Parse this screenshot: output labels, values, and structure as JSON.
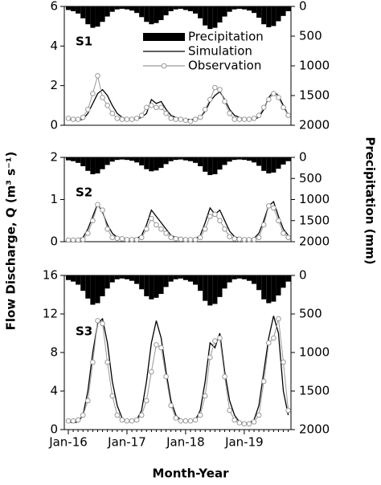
{
  "figure": {
    "xlabel": "Month-Year",
    "ylabel": "Flow Discharge, Q (m³ s⁻¹)",
    "y2label": "Precipitation (mm)"
  },
  "chart_data": [
    {
      "type": "line",
      "label": "S1",
      "ylim": [
        0,
        6
      ],
      "yticks": [
        0,
        2,
        4,
        6
      ],
      "y2lim": [
        0,
        2000
      ],
      "y2ticks": [
        0,
        500,
        1000,
        1500,
        2000
      ],
      "y2_inverted": true,
      "legend": "top-center",
      "series": [
        {
          "name": "Precipitation",
          "kind": "bar",
          "axis": "y2",
          "color": "#000000",
          "values": [
            60,
            80,
            120,
            200,
            300,
            360,
            340,
            260,
            170,
            90,
            50,
            40,
            50,
            70,
            110,
            180,
            260,
            300,
            280,
            230,
            150,
            80,
            50,
            40,
            60,
            80,
            120,
            200,
            320,
            380,
            360,
            270,
            170,
            90,
            50,
            40,
            50,
            70,
            110,
            190,
            300,
            350,
            330,
            250,
            160,
            80
          ]
        },
        {
          "name": "Simulation",
          "kind": "line",
          "color": "#000000",
          "values": [
            0.3,
            0.25,
            0.25,
            0.3,
            0.6,
            1.1,
            1.6,
            1.8,
            1.5,
            1.0,
            0.6,
            0.4,
            0.3,
            0.3,
            0.3,
            0.4,
            0.6,
            1.3,
            1.1,
            1.2,
            0.8,
            0.5,
            0.4,
            0.3,
            0.3,
            0.3,
            0.3,
            0.4,
            0.7,
            1.2,
            1.5,
            1.7,
            1.3,
            0.8,
            0.5,
            0.4,
            0.3,
            0.3,
            0.3,
            0.4,
            0.8,
            1.4,
            1.7,
            1.5,
            1.0,
            0.5
          ]
        },
        {
          "name": "Observation",
          "kind": "line-marker",
          "color": "#999999",
          "values": [
            0.35,
            0.3,
            0.3,
            0.4,
            0.8,
            1.6,
            2.5,
            1.4,
            1.0,
            0.6,
            0.35,
            0.3,
            0.3,
            0.3,
            0.35,
            0.5,
            0.9,
            1.0,
            0.9,
            0.9,
            0.6,
            0.35,
            0.3,
            0.3,
            0.25,
            0.2,
            0.3,
            0.4,
            0.8,
            1.3,
            1.9,
            1.8,
            1.2,
            0.6,
            0.3,
            0.3,
            0.3,
            0.3,
            0.35,
            0.5,
            0.9,
            1.3,
            1.6,
            1.4,
            0.9,
            0.5
          ]
        }
      ]
    },
    {
      "type": "line",
      "label": "S2",
      "ylim": [
        0,
        2
      ],
      "yticks": [
        0,
        1,
        2
      ],
      "y2lim": [
        0,
        2000
      ],
      "y2ticks": [
        0,
        500,
        1000,
        1500,
        2000
      ],
      "y2_inverted": true,
      "series": [
        {
          "kind": "bar",
          "axis": "y2",
          "color": "#000000",
          "values": [
            70,
            90,
            130,
            210,
            320,
            400,
            380,
            280,
            180,
            100,
            60,
            50,
            60,
            80,
            120,
            190,
            280,
            330,
            310,
            250,
            160,
            90,
            60,
            50,
            70,
            90,
            130,
            210,
            340,
            420,
            400,
            290,
            180,
            100,
            60,
            50,
            60,
            80,
            120,
            200,
            320,
            380,
            360,
            270,
            170,
            90
          ]
        },
        {
          "kind": "line",
          "color": "#000000",
          "values": [
            0.05,
            0.05,
            0.05,
            0.1,
            0.3,
            0.6,
            0.9,
            0.7,
            0.4,
            0.2,
            0.1,
            0.08,
            0.07,
            0.06,
            0.08,
            0.15,
            0.4,
            0.75,
            0.6,
            0.45,
            0.3,
            0.15,
            0.1,
            0.08,
            0.07,
            0.06,
            0.07,
            0.15,
            0.45,
            0.8,
            0.65,
            0.75,
            0.5,
            0.25,
            0.12,
            0.08,
            0.06,
            0.06,
            0.08,
            0.2,
            0.5,
            0.85,
            0.95,
            0.6,
            0.3,
            0.15
          ]
        },
        {
          "kind": "line-marker",
          "color": "#999999",
          "values": [
            0.04,
            0.04,
            0.04,
            0.05,
            0.2,
            0.5,
            0.88,
            0.75,
            0.3,
            0.1,
            0.08,
            0.07,
            0.05,
            0.05,
            0.05,
            0.1,
            0.3,
            0.55,
            0.4,
            0.3,
            0.2,
            0.1,
            0.07,
            0.06,
            0.05,
            0.05,
            0.05,
            0.1,
            0.3,
            0.6,
            0.65,
            0.5,
            0.3,
            0.12,
            0.07,
            0.06,
            0.05,
            0.05,
            0.05,
            0.1,
            0.4,
            0.85,
            0.8,
            0.5,
            0.2,
            0.1
          ]
        }
      ]
    },
    {
      "type": "line",
      "label": "S3",
      "ylim": [
        0,
        16
      ],
      "yticks": [
        0,
        4,
        8,
        12,
        16
      ],
      "y2lim": [
        0,
        2000
      ],
      "y2ticks": [
        0,
        500,
        1000,
        1500,
        2000
      ],
      "y2_inverted": true,
      "categories": [
        "Jan-16",
        null,
        null,
        null,
        null,
        null,
        null,
        null,
        null,
        null,
        null,
        null,
        "Jan-17",
        null,
        null,
        null,
        null,
        null,
        null,
        null,
        null,
        null,
        null,
        null,
        "Jan-18",
        null,
        null,
        null,
        null,
        null,
        null,
        null,
        null,
        null,
        null,
        null,
        "Jan-19",
        null,
        null,
        null,
        null,
        null,
        null,
        null,
        null,
        null
      ],
      "series": [
        {
          "kind": "bar",
          "axis": "y2",
          "color": "#000000",
          "values": [
            60,
            80,
            120,
            200,
            300,
            380,
            360,
            270,
            170,
            90,
            50,
            40,
            50,
            70,
            110,
            180,
            270,
            310,
            290,
            240,
            150,
            80,
            50,
            40,
            60,
            80,
            120,
            200,
            330,
            390,
            370,
            280,
            170,
            90,
            50,
            40,
            50,
            70,
            110,
            190,
            310,
            360,
            340,
            260,
            160,
            80
          ]
        },
        {
          "kind": "line",
          "color": "#000000",
          "values": [
            0.8,
            0.7,
            0.8,
            1.5,
            4,
            8,
            11,
            11.5,
            9,
            5,
            2.5,
            1.2,
            0.8,
            0.8,
            1,
            2,
            5,
            9,
            11.3,
            9.5,
            6,
            3,
            1.5,
            1,
            0.8,
            0.8,
            1,
            2,
            5,
            9,
            8.5,
            10,
            6,
            3,
            1.5,
            0.8,
            0.7,
            0.7,
            1,
            2.5,
            6,
            9.5,
            11.8,
            10,
            4,
            1.5
          ]
        },
        {
          "kind": "line-marker",
          "color": "#999999",
          "values": [
            0.9,
            0.9,
            1,
            1.5,
            3,
            7,
            11.3,
            11,
            7,
            3.5,
            1.5,
            1,
            0.9,
            0.9,
            1,
            1.5,
            3,
            6,
            8.8,
            8.5,
            5.5,
            2.5,
            1.2,
            0.9,
            0.9,
            0.9,
            1,
            1.5,
            3.5,
            7.5,
            9.2,
            9.5,
            5.5,
            2,
            1,
            0.7,
            0.6,
            0.6,
            0.8,
            1.5,
            5,
            9,
            9.5,
            11.5,
            7,
            2
          ]
        }
      ]
    }
  ]
}
